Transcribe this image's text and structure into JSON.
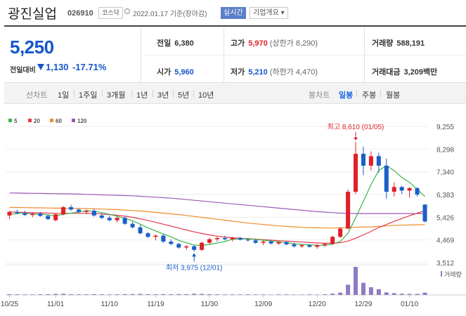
{
  "header": {
    "name": "광진실업",
    "code": "026910",
    "market": "코스닥",
    "date": "2022.01.17 기준(장마감)",
    "live": "실시간",
    "overview": "기업개요 ▾"
  },
  "quote": {
    "price": "5,250",
    "change_label": "전일대비",
    "change_value": "1,130",
    "change_pct": "-17.71%",
    "prev_close": {
      "label": "전일",
      "value": "6,380"
    },
    "high": {
      "label": "고가",
      "value": "5,970",
      "sub": "(상한가 8,290)"
    },
    "volume": {
      "label": "거래량",
      "value": "588,191"
    },
    "open": {
      "label": "시가",
      "value": "5,960"
    },
    "low": {
      "label": "저가",
      "value": "5,210",
      "sub": "(하한가 4,470)"
    },
    "amount": {
      "label": "거래대금",
      "value": "3,209",
      "unit": "백만"
    }
  },
  "tabs": {
    "line_label": "선차트",
    "periods": [
      "1일",
      "1주일",
      "3개월",
      "1년",
      "3년",
      "5년",
      "10년"
    ],
    "candle_label": "봉차트",
    "candle_periods": [
      "일봉",
      "주봉",
      "월봉"
    ],
    "active_candle": "일봉"
  },
  "chart_data": {
    "type": "candlestick",
    "legend": [
      {
        "name": "5",
        "color": "#3cb44b"
      },
      {
        "name": "20",
        "color": "#e6394b"
      },
      {
        "name": "60",
        "color": "#f08c2a"
      },
      {
        "name": "120",
        "color": "#9b59b6"
      }
    ],
    "y_ticks": [
      "9,255",
      "8,298",
      "7,340",
      "6,383",
      "5,426",
      "4,469",
      "3,512"
    ],
    "ylim": [
      3512,
      9255
    ],
    "x_ticks": [
      "10/25",
      "11/01",
      "11/10",
      "11/19",
      "11/30",
      "12/09",
      "12/20",
      "12/29",
      "01/10"
    ],
    "high_annotation": "최고 8,610 (01/05)",
    "low_annotation": "최저 3,975 (12/01)",
    "volume_label": "거래량",
    "candles": [
      [
        5500,
        5700,
        5350,
        5650
      ],
      [
        5650,
        5750,
        5550,
        5600
      ],
      [
        5600,
        5700,
        5480,
        5520
      ],
      [
        5520,
        5620,
        5430,
        5580
      ],
      [
        5580,
        5650,
        5450,
        5480
      ],
      [
        5480,
        5550,
        5300,
        5350
      ],
      [
        5300,
        5600,
        5250,
        5550
      ],
      [
        5550,
        5900,
        5500,
        5850
      ],
      [
        5850,
        5950,
        5700,
        5750
      ],
      [
        5750,
        5800,
        5600,
        5650
      ],
      [
        5650,
        5750,
        5550,
        5700
      ],
      [
        5700,
        5780,
        5450,
        5500
      ],
      [
        5500,
        5600,
        5350,
        5400
      ],
      [
        5400,
        5500,
        5250,
        5300
      ],
      [
        5300,
        5450,
        5200,
        5400
      ],
      [
        5400,
        5450,
        5100,
        5150
      ],
      [
        5150,
        5250,
        4950,
        5000
      ],
      [
        5000,
        5100,
        4700,
        4750
      ],
      [
        4750,
        4800,
        4550,
        4600
      ],
      [
        4600,
        4700,
        4450,
        4650
      ],
      [
        4650,
        4700,
        4350,
        4400
      ],
      [
        4400,
        4500,
        4250,
        4300
      ],
      [
        4300,
        4350,
        4100,
        4150
      ],
      [
        4150,
        4250,
        4050,
        4200
      ],
      [
        4200,
        4250,
        3975,
        4050
      ],
      [
        4050,
        4400,
        4000,
        4350
      ],
      [
        4350,
        4550,
        4300,
        4500
      ],
      [
        4500,
        4600,
        4400,
        4550
      ],
      [
        4550,
        4650,
        4450,
        4500
      ],
      [
        4500,
        4600,
        4400,
        4550
      ],
      [
        4550,
        4600,
        4450,
        4480
      ],
      [
        4480,
        4550,
        4400,
        4450
      ],
      [
        4450,
        4500,
        4300,
        4350
      ],
      [
        4350,
        4450,
        4250,
        4400
      ],
      [
        4400,
        4450,
        4280,
        4320
      ],
      [
        4320,
        4400,
        4250,
        4380
      ],
      [
        4380,
        4420,
        4250,
        4280
      ],
      [
        4280,
        4350,
        4150,
        4200
      ],
      [
        4200,
        4280,
        4130,
        4250
      ],
      [
        4250,
        4300,
        4150,
        4180
      ],
      [
        4180,
        4280,
        4100,
        4250
      ],
      [
        4250,
        4320,
        4180,
        4300
      ],
      [
        4300,
        4650,
        4250,
        4600
      ],
      [
        4600,
        5000,
        4550,
        4950
      ],
      [
        4950,
        6600,
        4900,
        6500
      ],
      [
        6500,
        8610,
        6400,
        8100
      ],
      [
        8100,
        8400,
        7200,
        7600
      ],
      [
        7600,
        8200,
        7400,
        8000
      ],
      [
        8000,
        8150,
        7300,
        7600
      ],
      [
        7600,
        7900,
        6200,
        6500
      ],
      [
        6500,
        6900,
        6300,
        6700
      ],
      [
        6700,
        6750,
        6400,
        6550
      ],
      [
        6550,
        6700,
        6250,
        6650
      ],
      [
        6650,
        6700,
        6300,
        6380
      ],
      [
        5960,
        5970,
        5210,
        5250
      ]
    ],
    "ma5": [
      5550,
      5580,
      5590,
      5570,
      5560,
      5520,
      5480,
      5550,
      5600,
      5650,
      5700,
      5680,
      5620,
      5550,
      5470,
      5380,
      5280,
      5130,
      4980,
      4850,
      4720,
      4600,
      4450,
      4350,
      4250,
      4240,
      4280,
      4340,
      4400,
      4500,
      4520,
      4510,
      4490,
      4460,
      4420,
      4390,
      4350,
      4310,
      4280,
      4260,
      4240,
      4240,
      4300,
      4400,
      4750,
      5400,
      6100,
      6800,
      7400,
      7600,
      7400,
      7100,
      6900,
      6600,
      6300
    ],
    "ma20": [
      5650,
      5640,
      5630,
      5620,
      5610,
      5600,
      5590,
      5590,
      5590,
      5590,
      5590,
      5580,
      5560,
      5540,
      5510,
      5470,
      5420,
      5360,
      5290,
      5210,
      5130,
      5050,
      4970,
      4890,
      4810,
      4740,
      4680,
      4630,
      4590,
      4560,
      4540,
      4520,
      4500,
      4480,
      4460,
      4440,
      4420,
      4400,
      4380,
      4360,
      4340,
      4330,
      4330,
      4350,
      4420,
      4540,
      4680,
      4830,
      4990,
      5120,
      5250,
      5370,
      5490,
      5600,
      5700
    ],
    "ma60": [
      5840,
      5835,
      5830,
      5825,
      5820,
      5815,
      5810,
      5805,
      5800,
      5795,
      5790,
      5780,
      5770,
      5760,
      5750,
      5730,
      5710,
      5690,
      5660,
      5630,
      5600,
      5570,
      5540,
      5500,
      5460,
      5420,
      5380,
      5340,
      5300,
      5260,
      5220,
      5180,
      5150,
      5120,
      5090,
      5060,
      5040,
      5020,
      5000,
      4990,
      4980,
      4970,
      4970,
      4980,
      4990,
      5000,
      5010,
      5020,
      5040,
      5060,
      5080,
      5090,
      5100,
      5110,
      5110
    ],
    "ma120": [
      6450,
      6445,
      6440,
      6435,
      6430,
      6425,
      6420,
      6415,
      6410,
      6400,
      6390,
      6380,
      6370,
      6360,
      6350,
      6340,
      6330,
      6310,
      6290,
      6270,
      6250,
      6230,
      6200,
      6170,
      6140,
      6110,
      6080,
      6050,
      6020,
      5990,
      5960,
      5930,
      5900,
      5870,
      5840,
      5810,
      5780,
      5750,
      5720,
      5690,
      5660,
      5640,
      5620,
      5600,
      5590,
      5580,
      5580,
      5580,
      5580,
      5580,
      5580,
      5580,
      5580,
      5580,
      5580
    ],
    "volume": [
      6,
      5,
      4,
      4,
      5,
      6,
      8,
      9,
      6,
      5,
      5,
      6,
      5,
      4,
      5,
      6,
      7,
      8,
      6,
      5,
      6,
      5,
      7,
      6,
      9,
      8,
      6,
      5,
      4,
      4,
      4,
      5,
      4,
      4,
      3,
      4,
      4,
      3,
      3,
      4,
      3,
      5,
      10,
      18,
      80,
      220,
      95,
      60,
      45,
      20,
      14,
      9,
      8,
      8,
      18
    ]
  }
}
